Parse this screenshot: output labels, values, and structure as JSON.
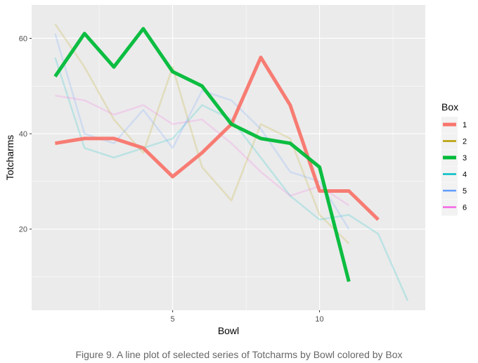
{
  "caption": "Figure 9. A line plot of selected series of Totcharms by Bowl colored by Box",
  "chart_data": {
    "type": "line",
    "title": "",
    "xlabel": "Bowl",
    "ylabel": "Totcharms",
    "xlim": [
      0.2,
      13.6
    ],
    "ylim": [
      3,
      67
    ],
    "x_ticks": [
      5,
      10
    ],
    "y_ticks": [
      20,
      40,
      60
    ],
    "grid": true,
    "legend": {
      "title": "Box",
      "position": "right"
    },
    "series": [
      {
        "name": "1",
        "color": "#F8766D",
        "highlighted": true,
        "x": [
          1,
          2,
          3,
          4,
          5,
          6,
          7,
          8,
          9,
          10,
          11,
          12
        ],
        "y": [
          38,
          39,
          39,
          37,
          31,
          36,
          42,
          56,
          46,
          28,
          28,
          22
        ]
      },
      {
        "name": "2",
        "color": "#B79F00",
        "highlighted": false,
        "x": [
          1,
          2,
          3,
          4,
          5,
          6,
          7,
          8,
          9,
          10,
          11
        ],
        "y": [
          63,
          54,
          43,
          36,
          54,
          33,
          26,
          42,
          39,
          23,
          17
        ]
      },
      {
        "name": "3",
        "color": "#00BA38",
        "highlighted": true,
        "x": [
          1,
          2,
          3,
          4,
          5,
          6,
          7,
          8,
          9,
          10,
          11
        ],
        "y": [
          52,
          61,
          54,
          62,
          53,
          50,
          42,
          39,
          38,
          33,
          9
        ]
      },
      {
        "name": "4",
        "color": "#00BFC4",
        "highlighted": false,
        "x": [
          1,
          2,
          3,
          4,
          5,
          6,
          7,
          8,
          9,
          10,
          11,
          12,
          13
        ],
        "y": [
          56,
          37,
          35,
          37,
          39,
          46,
          43,
          35,
          27,
          22,
          23,
          19,
          5
        ]
      },
      {
        "name": "5",
        "color": "#619CFF",
        "highlighted": false,
        "x": [
          1,
          2,
          3,
          4,
          5,
          6,
          7,
          8,
          9,
          10,
          11
        ],
        "y": [
          61,
          40,
          38,
          45,
          37,
          49,
          47,
          41,
          32,
          30,
          20
        ]
      },
      {
        "name": "6",
        "color": "#F564E3",
        "highlighted": false,
        "x": [
          1,
          2,
          3,
          4,
          5,
          6,
          7,
          8,
          9,
          10,
          11
        ],
        "y": [
          48,
          47,
          44,
          46,
          42,
          43,
          38,
          32,
          27,
          29,
          25
        ]
      }
    ]
  }
}
